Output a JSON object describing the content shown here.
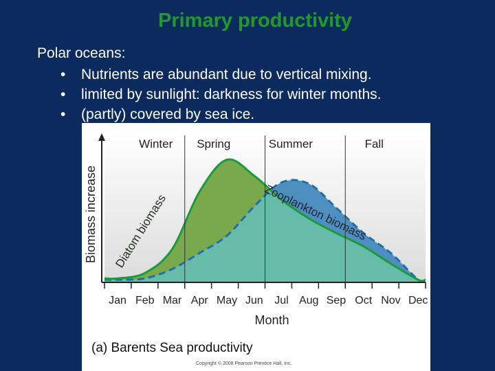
{
  "slide": {
    "title": "Primary productivity",
    "intro": "Polar oceans:",
    "bullets": [
      "Nutrients are abundant due to vertical mixing.",
      "limited by sunlight: darkness for winter months.",
      "(partly) covered by sea ice."
    ],
    "bullet_symbol": "•"
  },
  "chart_data": {
    "type": "area",
    "title": "",
    "caption": "(a) Barents Sea productivity",
    "copyright": "Copyright © 2008 Pearson Prentice Hall, Inc.",
    "xlabel": "Month",
    "ylabel": "Biomass increase",
    "categories": [
      "Jan",
      "Feb",
      "Mar",
      "Apr",
      "May",
      "Jun",
      "Jul",
      "Aug",
      "Sep",
      "Oct",
      "Nov",
      "Dec"
    ],
    "seasons": [
      "Winter",
      "Spring",
      "Summer",
      "Fall"
    ],
    "ylim": [
      0,
      100
    ],
    "series": [
      {
        "name": "Diatom biomass",
        "values": [
          3,
          7,
          25,
          68,
          92,
          80,
          62,
          48,
          37,
          27,
          14,
          2
        ],
        "fill": "#7aa94d",
        "line": "#1a9a3a"
      },
      {
        "name": "Zooplankton biomass",
        "values": [
          2,
          3,
          10,
          22,
          35,
          57,
          75,
          74,
          56,
          37,
          22,
          2
        ],
        "fill": "#4f8fc0",
        "line": "#1f6fb0"
      }
    ],
    "overlap_fill": "#66bca8",
    "grid": false
  }
}
